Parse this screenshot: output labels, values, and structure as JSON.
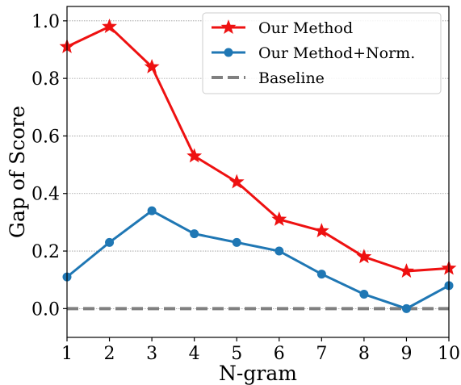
{
  "chart_data": {
    "type": "line",
    "xlabel": "N-gram",
    "ylabel": "Gap of Score",
    "x": [
      1,
      2,
      3,
      4,
      5,
      6,
      7,
      8,
      9,
      10
    ],
    "xlim": [
      1,
      10
    ],
    "ylim": [
      -0.1,
      1.05
    ],
    "yticks": [
      0.0,
      0.2,
      0.4,
      0.6,
      0.8,
      1.0
    ],
    "ytick_labels": [
      "0.0",
      "0.2",
      "0.4",
      "0.6",
      "0.8",
      "1.0"
    ],
    "xtick_labels": [
      "1",
      "2",
      "3",
      "4",
      "5",
      "6",
      "7",
      "8",
      "9",
      "10"
    ],
    "grid": "horizontal dotted",
    "legend_position": "top-right",
    "series": [
      {
        "name": "Our Method",
        "color": "#ee1111",
        "marker": "star",
        "values": [
          0.91,
          0.98,
          0.84,
          0.53,
          0.44,
          0.31,
          0.27,
          0.18,
          0.13,
          0.14
        ]
      },
      {
        "name": "Our Method+Norm.",
        "color": "#1f77b4",
        "marker": "circle",
        "values": [
          0.11,
          0.23,
          0.34,
          0.26,
          0.23,
          0.2,
          0.12,
          0.05,
          0.0,
          0.08
        ]
      },
      {
        "name": "Baseline",
        "color": "#808080",
        "marker": "dashed",
        "values": [
          0,
          0,
          0,
          0,
          0,
          0,
          0,
          0,
          0,
          0
        ]
      }
    ]
  }
}
